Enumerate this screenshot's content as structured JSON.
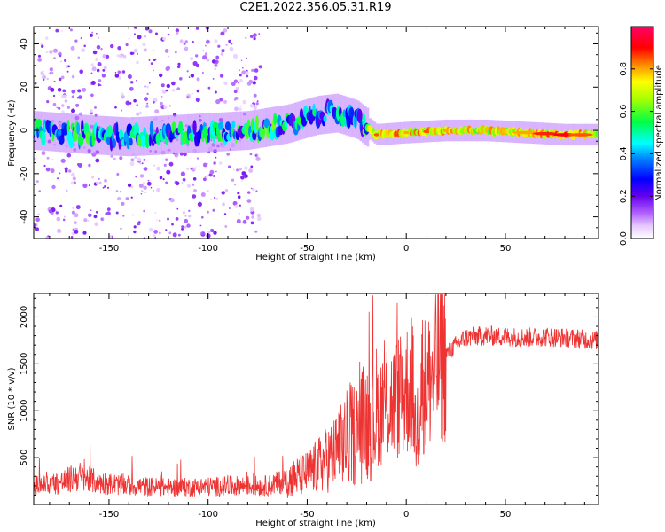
{
  "title": "C2E1.2022.356.05.31.R19",
  "chart_data": [
    {
      "type": "heatmap",
      "xlabel": "Height of straight line (km)",
      "ylabel": "Frequency (Hz)",
      "xlim": [
        -188,
        97
      ],
      "ylim": [
        -50,
        48
      ],
      "xticks": [
        -150,
        -100,
        -50,
        0,
        50
      ],
      "yticks": [
        -40,
        -20,
        0,
        20,
        40
      ],
      "colorbar": {
        "label": "Normalized spectral amplitude",
        "range": [
          0,
          1
        ],
        "ticks": [
          "0.0",
          "0.2",
          "0.4",
          "0.6",
          "0.8"
        ],
        "colormap": "rainbow (white-purple-blue-cyan-green-yellow-red-magenta)"
      },
      "ridge": {
        "x": [
          -188,
          -160,
          -140,
          -120,
          -100,
          -80,
          -60,
          -45,
          -35,
          -25,
          -15,
          0,
          20,
          40,
          60,
          80,
          97
        ],
        "center_freq": [
          0,
          -2,
          -3,
          -2,
          -1,
          0,
          3,
          7,
          8,
          5,
          -2,
          -1,
          0,
          0,
          -1,
          -2,
          -2
        ],
        "peak_amplitude": [
          0.5,
          0.55,
          0.5,
          0.55,
          0.5,
          0.6,
          0.55,
          0.45,
          0.4,
          0.5,
          0.85,
          0.8,
          0.8,
          0.75,
          0.75,
          0.9,
          0.7
        ]
      }
    },
    {
      "type": "line",
      "xlabel": "Height of straight line (km)",
      "ylabel": "SNR (10 * v/v)",
      "xlim": [
        -188,
        97
      ],
      "ylim": [
        0,
        2250
      ],
      "xticks": [
        -150,
        -100,
        -50,
        0,
        50
      ],
      "yticks": [
        500,
        1000,
        1500,
        2000
      ],
      "color": "#ee3333",
      "series": [
        {
          "x": [
            -188,
            -175,
            -165,
            -160,
            -150,
            -140,
            -120,
            -100,
            -80,
            -70,
            -60,
            -50,
            -45,
            -40,
            -35,
            -30,
            -25,
            -20,
            -15,
            -10,
            -5,
            0,
            3,
            5,
            8,
            10,
            15,
            20,
            25,
            30,
            40,
            50,
            60,
            70,
            80,
            90,
            97
          ],
          "y": [
            200,
            230,
            300,
            260,
            220,
            200,
            180,
            190,
            200,
            200,
            260,
            330,
            400,
            480,
            560,
            700,
            780,
            900,
            980,
            1050,
            1120,
            1220,
            1300,
            700,
            1350,
            1250,
            1480,
            1600,
            1700,
            1780,
            1800,
            1790,
            1780,
            1790,
            1780,
            1760,
            1750
          ]
        }
      ]
    }
  ]
}
